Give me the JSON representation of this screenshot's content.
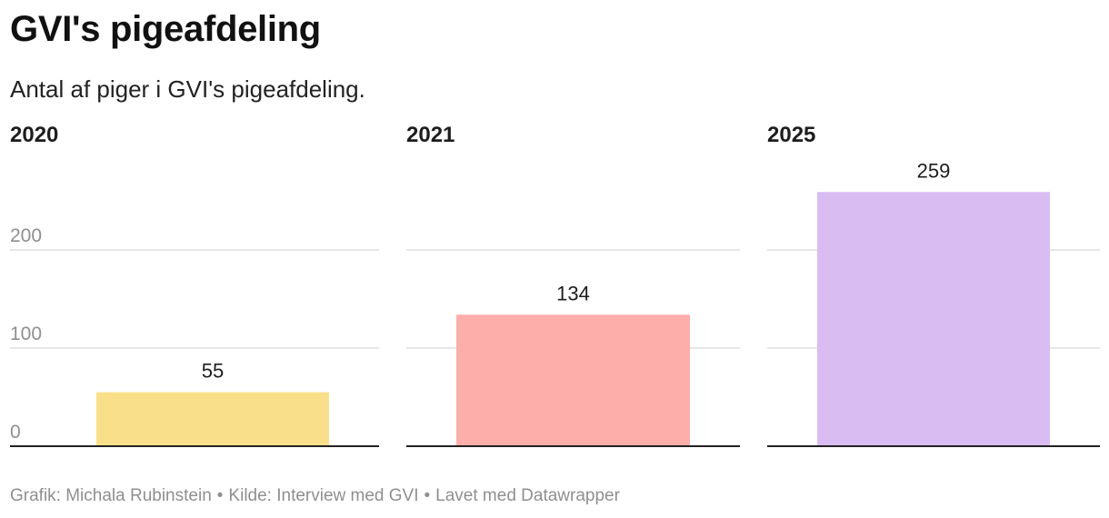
{
  "title": "GVI's pigeafdeling",
  "subtitle": "Antal af piger i GVI's pigeafdeling.",
  "chart_data": [
    {
      "type": "bar",
      "title": "2020",
      "categories": [
        "2020"
      ],
      "values": [
        55
      ],
      "ylim": [
        0,
        270
      ],
      "yticks": [
        0,
        100,
        200
      ],
      "grid": true,
      "color": "#fadf8b"
    },
    {
      "type": "bar",
      "title": "2021",
      "categories": [
        "2021"
      ],
      "values": [
        134
      ],
      "ylim": [
        0,
        270
      ],
      "yticks": [
        0,
        100,
        200
      ],
      "grid": true,
      "color": "#fdaeab"
    },
    {
      "type": "bar",
      "title": "2025",
      "categories": [
        "2025"
      ],
      "values": [
        259
      ],
      "ylim": [
        0,
        270
      ],
      "yticks": [
        0,
        100,
        200
      ],
      "grid": true,
      "color": "#d8bcf2"
    }
  ],
  "footer": {
    "credit": "Grafik: Michala Rubinstein",
    "source": "Kilde: Interview med GVI",
    "tool": "Lavet med Datawrapper",
    "separator": "•"
  }
}
